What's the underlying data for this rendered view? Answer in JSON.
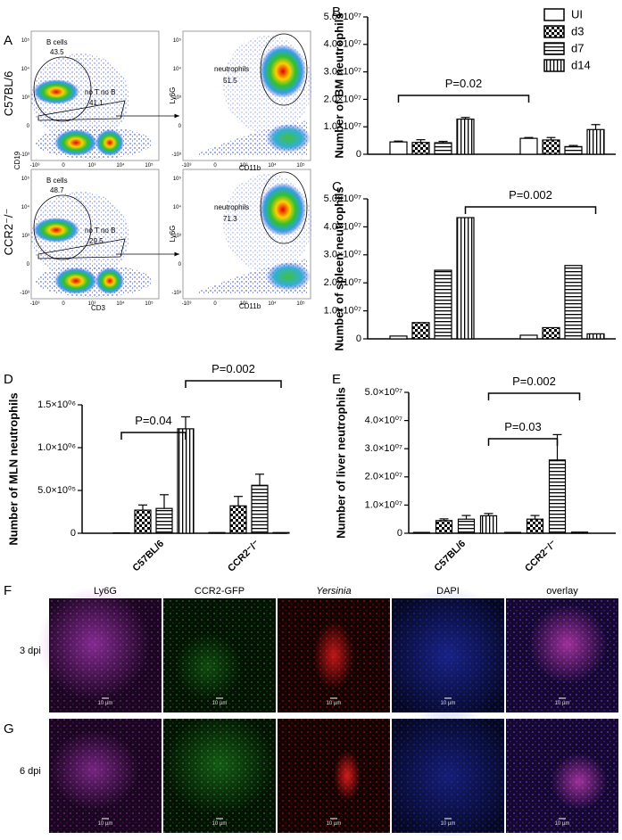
{
  "chart_data": [
    {
      "type": "bar",
      "panel_label": "B",
      "ylabel": "Number of BM neutrophils",
      "categories": [
        null,
        null
      ],
      "series": [
        {
          "name": "UI",
          "pattern": "none",
          "values": [
            4500000,
            5800000
          ],
          "errors": [
            300000,
            300000
          ]
        },
        {
          "name": "d3",
          "pattern": "checker",
          "values": [
            4300000,
            5200000
          ],
          "errors": [
            1000000,
            900000
          ]
        },
        {
          "name": "d7",
          "pattern": "horizontal",
          "values": [
            4200000,
            2800000
          ],
          "errors": [
            500000,
            400000
          ]
        },
        {
          "name": "d14",
          "pattern": "vertical",
          "values": [
            12800000,
            9000000
          ],
          "errors": [
            600000,
            1800000
          ]
        }
      ],
      "ylim": [
        0,
        50000000
      ],
      "yticks": [
        0,
        {
          "value": 10000000,
          "label": "1.0×10⁰⁷"
        },
        {
          "value": 20000000,
          "label": "2.0×10⁰⁷"
        },
        {
          "value": 30000000,
          "label": "3.0×10⁰⁷"
        },
        {
          "value": 40000000,
          "label": "4.0×10⁰⁷"
        },
        {
          "value": 50000000,
          "label": "5.0×10⁰⁷"
        }
      ],
      "legend": "upper right",
      "comparisons": [
        {
          "label": "P=0.02",
          "from": {
            "group": 0,
            "series": 0
          },
          "to": {
            "group": 1,
            "series": 0
          }
        }
      ]
    },
    {
      "type": "bar",
      "panel_label": "C",
      "ylabel": "Number of spleen neutrophils",
      "categories": [
        null,
        null
      ],
      "series": [
        {
          "pattern": "none",
          "values": [
            1000000,
            1300000
          ]
        },
        {
          "pattern": "checker",
          "values": [
            5800000,
            4000000
          ]
        },
        {
          "pattern": "horizontal",
          "values": [
            24500000,
            26200000
          ]
        },
        {
          "pattern": "vertical",
          "values": [
            43300000,
            1800000
          ]
        }
      ],
      "ylim": [
        0,
        50000000
      ],
      "yticks": [
        0,
        {
          "value": 10000000,
          "label": "1.0×10⁰⁷"
        },
        {
          "value": 20000000,
          "label": "2.0×10⁰⁷"
        },
        {
          "value": 30000000,
          "label": "3.0×10⁰⁷"
        },
        {
          "value": 40000000,
          "label": "4.0×10⁰⁷"
        },
        {
          "value": 50000000,
          "label": "5.0×10⁰⁷"
        }
      ],
      "comparisons": [
        {
          "label": "P=0.002",
          "from": {
            "group": 0,
            "series": 3
          },
          "to": {
            "group": 1,
            "series": 3
          }
        }
      ]
    },
    {
      "type": "bar",
      "panel_label": "D",
      "ylabel": "Number of MLN neutrophils",
      "categories": [
        "C57BL/6",
        "CCR2⁻/⁻"
      ],
      "series": [
        {
          "pattern": "none",
          "values": [
            5000,
            8000
          ]
        },
        {
          "pattern": "checker",
          "values": [
            270000,
            320000
          ],
          "errors": [
            60000,
            110000
          ]
        },
        {
          "pattern": "horizontal",
          "values": [
            290000,
            560000
          ],
          "errors": [
            160000,
            130000
          ]
        },
        {
          "pattern": "vertical",
          "values": [
            1220000,
            8000
          ],
          "errors": [
            140000,
            null
          ]
        }
      ],
      "ylim": [
        0,
        1500000
      ],
      "yticks": [
        0,
        {
          "value": 500000,
          "label": "5.0×10⁰⁵"
        },
        {
          "value": 1000000,
          "label": "1.0×10⁰⁶"
        },
        {
          "value": 1500000,
          "label": "1.5×10⁰⁶"
        }
      ],
      "comparisons": [
        {
          "label": "P=0.04",
          "from": {
            "group": 0,
            "series": 0
          },
          "to": {
            "group": 0,
            "series": 3
          }
        },
        {
          "label": "P=0.002",
          "from": {
            "group": 0,
            "series": 3
          },
          "to": {
            "group": 1,
            "series": 3
          }
        }
      ]
    },
    {
      "type": "bar",
      "panel_label": "E",
      "ylabel": "Number of liver neutrophils",
      "categories": [
        "C57BL/6",
        "CCR2⁻/⁻"
      ],
      "series": [
        {
          "pattern": "none",
          "values": [
            300000,
            300000
          ]
        },
        {
          "pattern": "checker",
          "values": [
            4500000,
            5000000
          ],
          "errors": [
            600000,
            1300000
          ]
        },
        {
          "pattern": "horizontal",
          "values": [
            5000000,
            26000000
          ],
          "errors": [
            1300000,
            9000000
          ]
        },
        {
          "pattern": "vertical",
          "values": [
            6200000,
            400000
          ],
          "errors": [
            800000,
            null
          ]
        }
      ],
      "ylim": [
        0,
        50000000
      ],
      "yticks": [
        0,
        {
          "value": 10000000,
          "label": "1.0×10⁰⁷"
        },
        {
          "value": 20000000,
          "label": "2.0×10⁰⁷"
        },
        {
          "value": 30000000,
          "label": "3.0×10⁰⁷"
        },
        {
          "value": 40000000,
          "label": "4.0×10⁰⁷"
        },
        {
          "value": 50000000,
          "label": "5.0×10⁰⁷"
        }
      ],
      "comparisons": [
        {
          "label": "P=0.002",
          "from": {
            "group": 0,
            "series": 3
          },
          "to": {
            "group": 1,
            "series": 3
          }
        },
        {
          "label": "P=0.03",
          "from": {
            "group": 0,
            "series": 3
          },
          "to": {
            "group": 1,
            "series": 2
          }
        }
      ]
    }
  ],
  "flow_cytometry": {
    "panel_label": "A",
    "lymph_x": "CD3",
    "lymph_y": "CD19",
    "myeloid_x": "CD11b",
    "myeloid_y": "Ly6G",
    "log_ticks": [
      "-10³",
      "0",
      "10³",
      "10⁴",
      "10⁵"
    ],
    "rows": [
      {
        "label": "C57BL/6",
        "b_cells": "B cells",
        "b_cells_pct": 43.5,
        "other": "no T no B",
        "other_pct": 41.1,
        "neutrophils": "neutrophils",
        "neutrophils_pct": 51.5
      },
      {
        "label": "CCR2⁻/⁻",
        "b_cells": "B cells",
        "b_cells_pct": 48.7,
        "other": "no T no B",
        "other_pct": 29.5,
        "neutrophils": "neutrophils",
        "neutrophils_pct": 71.3
      }
    ]
  },
  "microscopy": {
    "panel_labels": [
      "F",
      "G"
    ],
    "channels": [
      "Ly6G",
      "CCR2-GFP",
      "Yersinia",
      "DAPI",
      "overlay"
    ],
    "rows": [
      "3 dpi",
      "6 dpi"
    ],
    "scale_bar": "10 µm"
  }
}
